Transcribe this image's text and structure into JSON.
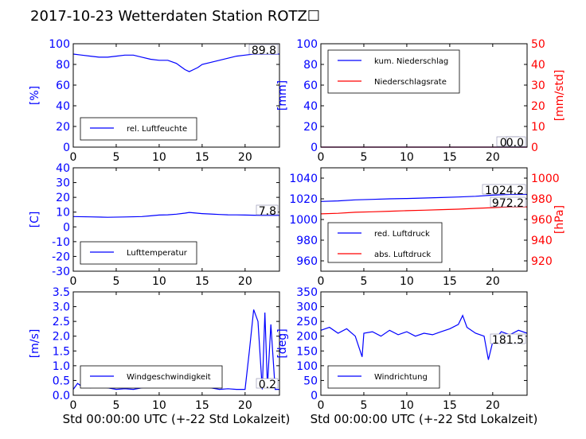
{
  "title": "2017-10-23 Wetterdaten Station ROTZ☐",
  "colors": {
    "primary": "#0000ff",
    "secondary": "#ff0000",
    "axis": "#000000"
  },
  "chart_data": [
    {
      "type": "line",
      "ylabel": "[%]",
      "xlim": [
        0,
        24
      ],
      "ylim": [
        0,
        100
      ],
      "xticks": [
        0,
        5,
        10,
        15,
        20
      ],
      "yticks": [
        0,
        20,
        40,
        60,
        80,
        100
      ],
      "series": [
        {
          "name": "rel. Luftfeuchte",
          "color": "#0000ff",
          "x": [
            0,
            1,
            2,
            3,
            4,
            5,
            6,
            7,
            8,
            9,
            10,
            11,
            12,
            12.5,
            13,
            13.5,
            14,
            14.5,
            15,
            16,
            17,
            18,
            19,
            20,
            21,
            22,
            23,
            24
          ],
          "y": [
            90,
            89,
            88,
            87,
            87,
            88,
            89,
            89,
            87,
            85,
            84,
            84,
            81,
            78,
            75,
            73,
            75,
            77,
            80,
            82,
            84,
            86,
            88,
            89,
            90,
            90,
            90,
            90
          ]
        }
      ],
      "annotations": [
        "89.8"
      ],
      "legend": "lower-left",
      "grid": false
    },
    {
      "type": "line",
      "ylabel": "[mm]",
      "y2label": "[mm/std]",
      "xlim": [
        0,
        24
      ],
      "ylim": [
        0,
        100
      ],
      "y2lim": [
        0,
        50
      ],
      "xticks": [
        0,
        5,
        10,
        15,
        20
      ],
      "yticks": [
        0,
        20,
        40,
        60,
        80,
        100
      ],
      "y2ticks": [
        0,
        10,
        20,
        30,
        40,
        50
      ],
      "series": [
        {
          "name": "kum. Niederschlag",
          "color": "#0000ff",
          "axis": "left",
          "x": [
            0,
            24
          ],
          "y": [
            0,
            0
          ]
        },
        {
          "name": "Niederschlagsrate",
          "color": "#ff0000",
          "axis": "right",
          "x": [
            0,
            24
          ],
          "y": [
            0,
            0
          ]
        }
      ],
      "annotations": [
        "0.0",
        "0.0"
      ],
      "legend": "upper-left",
      "grid": false
    },
    {
      "type": "line",
      "ylabel": "[C]",
      "xlim": [
        0,
        24
      ],
      "ylim": [
        -30,
        40
      ],
      "xticks": [
        0,
        5,
        10,
        15,
        20
      ],
      "yticks": [
        -30,
        -20,
        -10,
        0,
        10,
        20,
        30,
        40
      ],
      "series": [
        {
          "name": "Lufttemperatur",
          "color": "#0000ff",
          "x": [
            0,
            2,
            4,
            6,
            8,
            9,
            10,
            11,
            12,
            13,
            13.5,
            14,
            15,
            16,
            17,
            18,
            19,
            20,
            21,
            22,
            24
          ],
          "y": [
            7,
            6.8,
            6.5,
            6.7,
            7,
            7.5,
            8,
            8.2,
            8.6,
            9.3,
            9.8,
            9.5,
            9,
            8.7,
            8.4,
            8.2,
            8.1,
            8,
            7.9,
            7.8,
            7.8
          ]
        }
      ],
      "annotations": [
        "7.8"
      ],
      "legend": "lower-left",
      "grid": false
    },
    {
      "type": "line",
      "ylabel": "",
      "y2label": "[hPa]",
      "xlim": [
        0,
        24
      ],
      "ylim": [
        950,
        1050
      ],
      "y2lim": [
        910,
        1010
      ],
      "xticks": [
        0,
        5,
        10,
        15,
        20
      ],
      "yticks": [
        960,
        980,
        1000,
        1020,
        1040
      ],
      "y2ticks": [
        920,
        940,
        960,
        980,
        1000
      ],
      "series": [
        {
          "name": "red. Luftdruck",
          "color": "#0000ff",
          "axis": "left",
          "x": [
            0,
            2,
            4,
            6,
            8,
            10,
            12,
            14,
            16,
            18,
            20,
            22,
            24
          ],
          "y": [
            1017.5,
            1018,
            1019,
            1019.5,
            1020,
            1020.3,
            1020.8,
            1021.2,
            1021.8,
            1022.5,
            1023.5,
            1024.2,
            1024.2
          ]
        },
        {
          "name": "abs. Luftdruck",
          "color": "#ff0000",
          "axis": "right",
          "x": [
            0,
            2,
            4,
            6,
            8,
            10,
            12,
            14,
            16,
            18,
            20,
            22,
            24
          ],
          "y": [
            965.5,
            966,
            967,
            967.5,
            968,
            968.5,
            969,
            969.5,
            970,
            970.8,
            971.5,
            972.2,
            972.2
          ]
        }
      ],
      "annotations": [
        "1024.2",
        "972.2"
      ],
      "legend": "lower-left",
      "grid": false
    },
    {
      "type": "line",
      "ylabel": "[m/s]",
      "xlabel": "Std 00:00:00 UTC (+-22 Std Lokalzeit)",
      "xlim": [
        0,
        24
      ],
      "ylim": [
        0,
        3.5
      ],
      "xticks": [
        0,
        5,
        10,
        15,
        20
      ],
      "yticks": [
        0.0,
        0.5,
        1.0,
        1.5,
        2.0,
        2.5,
        3.0,
        3.5
      ],
      "series": [
        {
          "name": "Windgeschwindigkeit",
          "color": "#0000ff",
          "x": [
            0,
            0.5,
            1,
            2,
            3,
            4,
            5,
            6,
            7,
            8,
            9,
            10,
            11,
            12,
            13,
            14,
            15,
            16,
            17,
            18,
            19,
            20,
            20.5,
            21,
            21.5,
            22,
            22.3,
            22.6,
            23,
            23.5,
            24
          ],
          "y": [
            0.2,
            0.4,
            0.3,
            0.25,
            0.3,
            0.25,
            0.2,
            0.22,
            0.2,
            0.25,
            0.3,
            0.4,
            0.5,
            0.55,
            0.45,
            0.35,
            0.3,
            0.25,
            0.2,
            0.22,
            0.2,
            0.2,
            1.5,
            2.9,
            2.5,
            0.2,
            2.8,
            0.3,
            2.4,
            0.2,
            0.2
          ]
        }
      ],
      "annotations": [
        "0.2"
      ],
      "legend": "lower-left",
      "grid": false
    },
    {
      "type": "line",
      "ylabel": "[deg]",
      "xlabel": "Std 00:00:00 UTC (+-22 Std Lokalzeit)",
      "xlim": [
        0,
        24
      ],
      "ylim": [
        0,
        350
      ],
      "xticks": [
        0,
        5,
        10,
        15,
        20
      ],
      "yticks": [
        0,
        50,
        100,
        150,
        200,
        250,
        300,
        350
      ],
      "series": [
        {
          "name": "Windrichtung",
          "color": "#0000ff",
          "x": [
            0,
            1,
            2,
            3,
            4,
            4.8,
            5,
            6,
            7,
            8,
            9,
            10,
            11,
            12,
            13,
            14,
            15,
            16,
            16.5,
            17,
            18,
            19,
            19.5,
            20,
            21,
            22,
            23,
            24
          ],
          "y": [
            220,
            230,
            210,
            225,
            200,
            130,
            210,
            215,
            200,
            220,
            205,
            215,
            200,
            210,
            205,
            215,
            225,
            240,
            270,
            230,
            210,
            200,
            120,
            180,
            215,
            205,
            220,
            210
          ]
        }
      ],
      "annotations": [
        "181.5"
      ],
      "legend": "lower-left",
      "grid": false
    }
  ]
}
